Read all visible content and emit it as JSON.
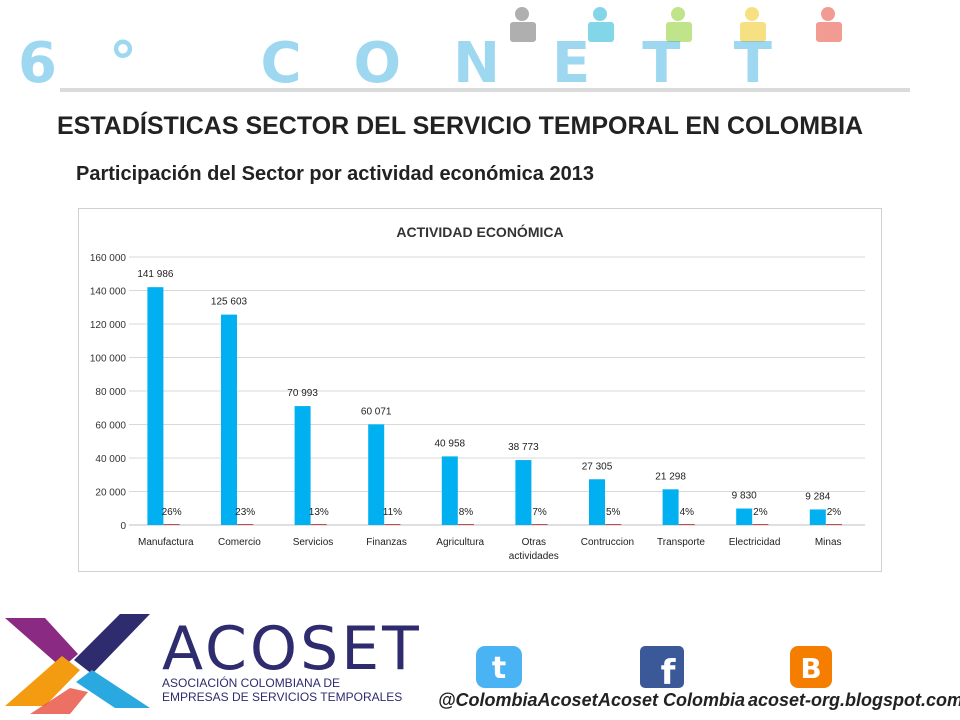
{
  "slide": {
    "title": "ESTADÍSTICAS SECTOR DEL SERVICIO TEMPORAL EN COLOMBIA",
    "subtitle": "Participación del Sector por actividad económica 2013"
  },
  "banner": {
    "text": "6° CONETT",
    "colors": [
      "#2aa8e0",
      "#6f6f6f",
      "#1fb5d6",
      "#8ccf2a",
      "#f2c81d",
      "#e84b3c"
    ]
  },
  "chart_data": {
    "type": "bar",
    "title": "ACTIVIDAD ECONÓMICA",
    "categories": [
      "Manufactura",
      "Comercio",
      "Servicios",
      "Finanzas",
      "Agricultura",
      "Otras actividades",
      "Contruccion",
      "Transporte",
      "Electricidad",
      "Minas"
    ],
    "series": [
      {
        "values": [
          141986,
          125603,
          70993,
          60071,
          40958,
          38773,
          27305,
          21298,
          9830,
          9284
        ],
        "value_labels": [
          "141 986",
          "125 603",
          "70 993",
          "60 071",
          "40 958",
          "38 773",
          "27 305",
          "21 298",
          "9 830",
          "9 284"
        ],
        "color": "#00b0f0"
      },
      {
        "values": [
          0.26,
          0.23,
          0.13,
          0.11,
          0.08,
          0.07,
          0.05,
          0.04,
          0.02,
          0.02
        ],
        "value_labels": [
          "26%",
          "23%",
          "13%",
          "11%",
          "8%",
          "7%",
          "5%",
          "4%",
          "2%",
          "2%"
        ],
        "color": "#c0504d"
      }
    ],
    "yticks": [
      "0",
      "20 000",
      "40 000",
      "60 000",
      "80 000",
      "100 000",
      "120 000",
      "140 000",
      "160 000"
    ],
    "ylim": [
      0,
      160000
    ],
    "grid": true
  },
  "footer": {
    "brand": "ACOSET",
    "brand_line1": "ASOCIACIÓN COLOMBIANA DE",
    "brand_line2": "EMPRESAS DE SERVICIOS TEMPORALES",
    "logo_colors": [
      "#8b2a82",
      "#f39c12",
      "#2aa8e0",
      "#2e2b6e"
    ],
    "social": [
      {
        "icon": "twitter-icon",
        "label": "@ColombiaAcoset",
        "color": "#4ab3f4"
      },
      {
        "icon": "facebook-icon",
        "label": "Acoset Colombia",
        "color": "#3b5998"
      },
      {
        "icon": "blogger-icon",
        "label": "acoset-org.blogspot.com",
        "color": "#f57d00"
      }
    ]
  }
}
